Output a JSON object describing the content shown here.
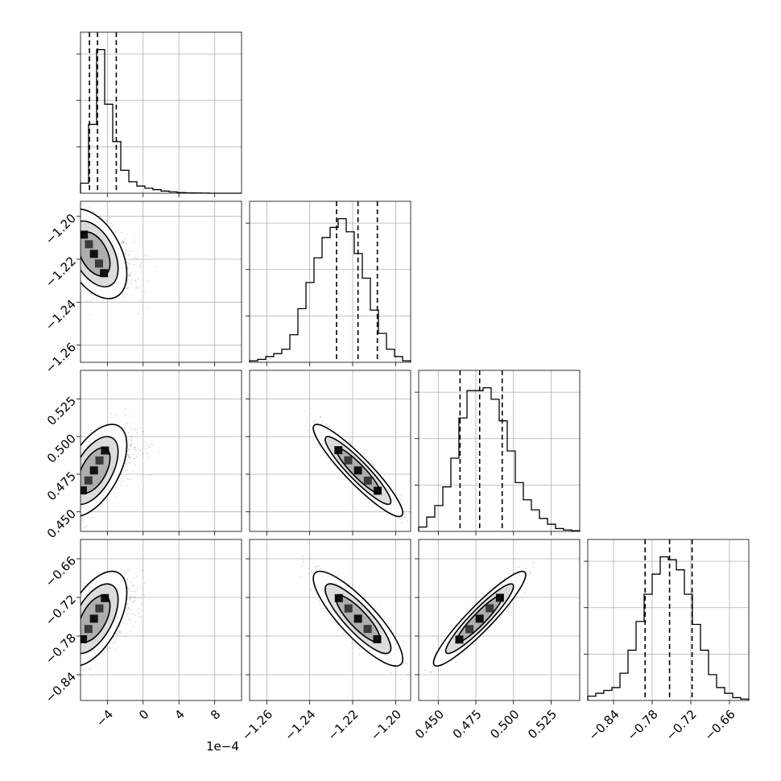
{
  "chart_data": {
    "type": "corner",
    "grid": true,
    "dims": [
      {
        "range": [
          -7.0,
          11.0
        ],
        "ticks": [
          -4,
          0,
          4,
          8
        ],
        "tick_labels": [
          "−4",
          "0",
          "4",
          "8"
        ],
        "offset_label": "1e−4",
        "mode": -5.5,
        "sd_lo": 0.8,
        "sd_hi": 2.2,
        "quantiles": [
          -6.0,
          -5.1,
          -3.0
        ],
        "hist_counts": [
          0.07,
          0.48,
          1.0,
          0.62,
          0.36,
          0.16,
          0.08,
          0.05,
          0.035,
          0.025,
          0.015,
          0.01,
          0.005,
          0.003,
          0.002,
          0.001,
          0.0,
          0.0,
          0.0,
          0.0
        ]
      },
      {
        "range": [
          -1.268,
          -1.193
        ],
        "ticks": [
          -1.26,
          -1.24,
          -1.22,
          -1.2
        ],
        "tick_labels": [
          "−1.26",
          "−1.24",
          "−1.22",
          "−1.20"
        ],
        "mode": -1.2175,
        "sd_lo": 0.0085,
        "sd_hi": 0.0085,
        "quantiles": [
          -1.2275,
          -1.2175,
          -1.2085
        ],
        "hist_counts": [
          0.01,
          0.02,
          0.04,
          0.06,
          0.09,
          0.19,
          0.37,
          0.55,
          0.72,
          0.86,
          0.93,
          0.99,
          0.9,
          0.75,
          0.58,
          0.36,
          0.2,
          0.09,
          0.04,
          0.01
        ]
      },
      {
        "range": [
          0.437,
          0.544
        ],
        "ticks": [
          0.45,
          0.475,
          0.5,
          0.525
        ],
        "tick_labels": [
          "0.450",
          "0.475",
          "0.500",
          "0.525"
        ],
        "mode": 0.4775,
        "sd_lo": 0.012,
        "sd_hi": 0.013,
        "quantiles": [
          0.4645,
          0.4775,
          0.4925
        ],
        "hist_counts": [
          0.03,
          0.1,
          0.18,
          0.31,
          0.51,
          0.79,
          0.98,
          0.98,
          1.0,
          0.92,
          0.77,
          0.56,
          0.34,
          0.22,
          0.15,
          0.09,
          0.05,
          0.02,
          0.01,
          0.005
        ]
      },
      {
        "range": [
          -0.88,
          -0.63
        ],
        "ticks": [
          -0.84,
          -0.78,
          -0.72,
          -0.66
        ],
        "tick_labels": [
          "−0.84",
          "−0.78",
          "−0.72",
          "−0.66"
        ],
        "mode": -0.753,
        "sd_lo": 0.03,
        "sd_hi": 0.03,
        "quantiles": [
          -0.791,
          -0.753,
          -0.718
        ],
        "hist_counts": [
          0.03,
          0.05,
          0.07,
          0.09,
          0.19,
          0.35,
          0.55,
          0.74,
          0.88,
          1.0,
          0.98,
          0.91,
          0.74,
          0.53,
          0.35,
          0.18,
          0.09,
          0.05,
          0.02,
          0.01
        ]
      }
    ],
    "correlations": [
      [
        1.0,
        -0.45,
        0.55,
        0.55
      ],
      [
        -0.45,
        1.0,
        -0.92,
        -0.85
      ],
      [
        0.55,
        -0.92,
        1.0,
        0.93
      ],
      [
        0.55,
        -0.85,
        0.93,
        1.0
      ]
    ],
    "scatter_points_per_panel": 1100
  }
}
